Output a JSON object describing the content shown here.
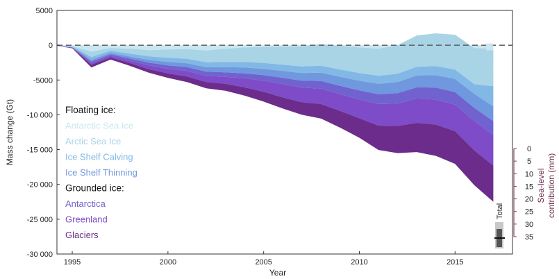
{
  "chart_data": {
    "type": "area",
    "title": "",
    "xlabel": "Year",
    "ylabel": "Mass change (Gt)",
    "xlim": [
      1994.2,
      2018.0
    ],
    "ylim": [
      -30000,
      5000
    ],
    "x_ticks": [
      "1995",
      "2000",
      "2005",
      "2010",
      "2015"
    ],
    "y_ticks": [
      "5000",
      "0",
      "-5000",
      "-10 000",
      "-15 000",
      "-20 000",
      "-25 000",
      "-30 000"
    ],
    "x": [
      1994,
      1995,
      1996,
      1997,
      1998,
      1999,
      2000,
      2001,
      2002,
      2003,
      2004,
      2005,
      2006,
      2007,
      2008,
      2009,
      2010,
      2011,
      2012,
      2013,
      2014,
      2015,
      2016,
      2017
    ],
    "baseline_dashed": true,
    "legend_headers": [
      "Floating ice:",
      "Grounded ice:"
    ],
    "series": [
      {
        "name": "Antarctic Sea Ice",
        "color": "#c9e6f0",
        "values": [
          0,
          -150,
          -900,
          -400,
          -500,
          -700,
          -600,
          -550,
          -750,
          -500,
          -300,
          -250,
          -200,
          -150,
          150,
          -100,
          -300,
          -500,
          0,
          1400,
          1700,
          1500,
          -400,
          -500
        ]
      },
      {
        "name": "Arctic Sea Ice",
        "color": "#a8d4e6",
        "values": [
          0,
          -80,
          -800,
          -400,
          -700,
          -900,
          -1200,
          -1400,
          -1700,
          -1900,
          -2100,
          -2300,
          -2600,
          -2900,
          -3100,
          -3400,
          -3700,
          -3900,
          -4100,
          -4500,
          -4700,
          -5000,
          -5200,
          -5400
        ]
      },
      {
        "name": "Ice Shelf Calving",
        "color": "#82b8e6",
        "values": [
          0,
          -40,
          -400,
          -300,
          -400,
          -500,
          -600,
          -650,
          -700,
          -750,
          -800,
          -850,
          -900,
          -950,
          -1000,
          -1050,
          -1100,
          -1150,
          -1200,
          -1250,
          -1300,
          -1350,
          -1400,
          -2900
        ]
      },
      {
        "name": "Ice Shelf Thinning",
        "color": "#6f98de",
        "values": [
          0,
          -30,
          -250,
          -200,
          -300,
          -400,
          -500,
          -550,
          -650,
          -750,
          -850,
          -900,
          -1000,
          -1100,
          -1200,
          -1300,
          -1400,
          -1500,
          -1600,
          -1700,
          -1800,
          -1900,
          -2000,
          -2100
        ]
      },
      {
        "name": "Antarctica",
        "color": "#7063cf",
        "values": [
          0,
          -40,
          -250,
          -200,
          -300,
          -400,
          -500,
          -550,
          -600,
          -650,
          -700,
          -800,
          -900,
          -1000,
          -1100,
          -1200,
          -1300,
          -1400,
          -1500,
          -1600,
          -1700,
          -1800,
          -1900,
          -2000
        ]
      },
      {
        "name": "Greenland",
        "color": "#7e4cc8",
        "values": [
          0,
          -30,
          -200,
          -250,
          -350,
          -550,
          -650,
          -800,
          -900,
          -1000,
          -1300,
          -1600,
          -1900,
          -2100,
          -2200,
          -2400,
          -2700,
          -3100,
          -3200,
          -3500,
          -3600,
          -3800,
          -4200,
          -4400
        ]
      },
      {
        "name": "Glaciers",
        "color": "#6c2c8c",
        "values": [
          0,
          -70,
          -400,
          -300,
          -400,
          -500,
          -650,
          -800,
          -900,
          -1000,
          -1200,
          -1400,
          -1600,
          -1800,
          -2100,
          -2400,
          -2800,
          -3500,
          -3900,
          -4200,
          -4500,
          -4700,
          -5000,
          -5200
        ]
      }
    ],
    "sea_level_axis": {
      "title": "Sea-level contribution (mm)",
      "ticks": [
        "0",
        "5",
        "10",
        "15",
        "20",
        "25",
        "30",
        "35"
      ],
      "values": [
        0,
        5,
        10,
        15,
        20,
        25,
        30,
        35
      ]
    },
    "total_bar_label": "Total"
  }
}
